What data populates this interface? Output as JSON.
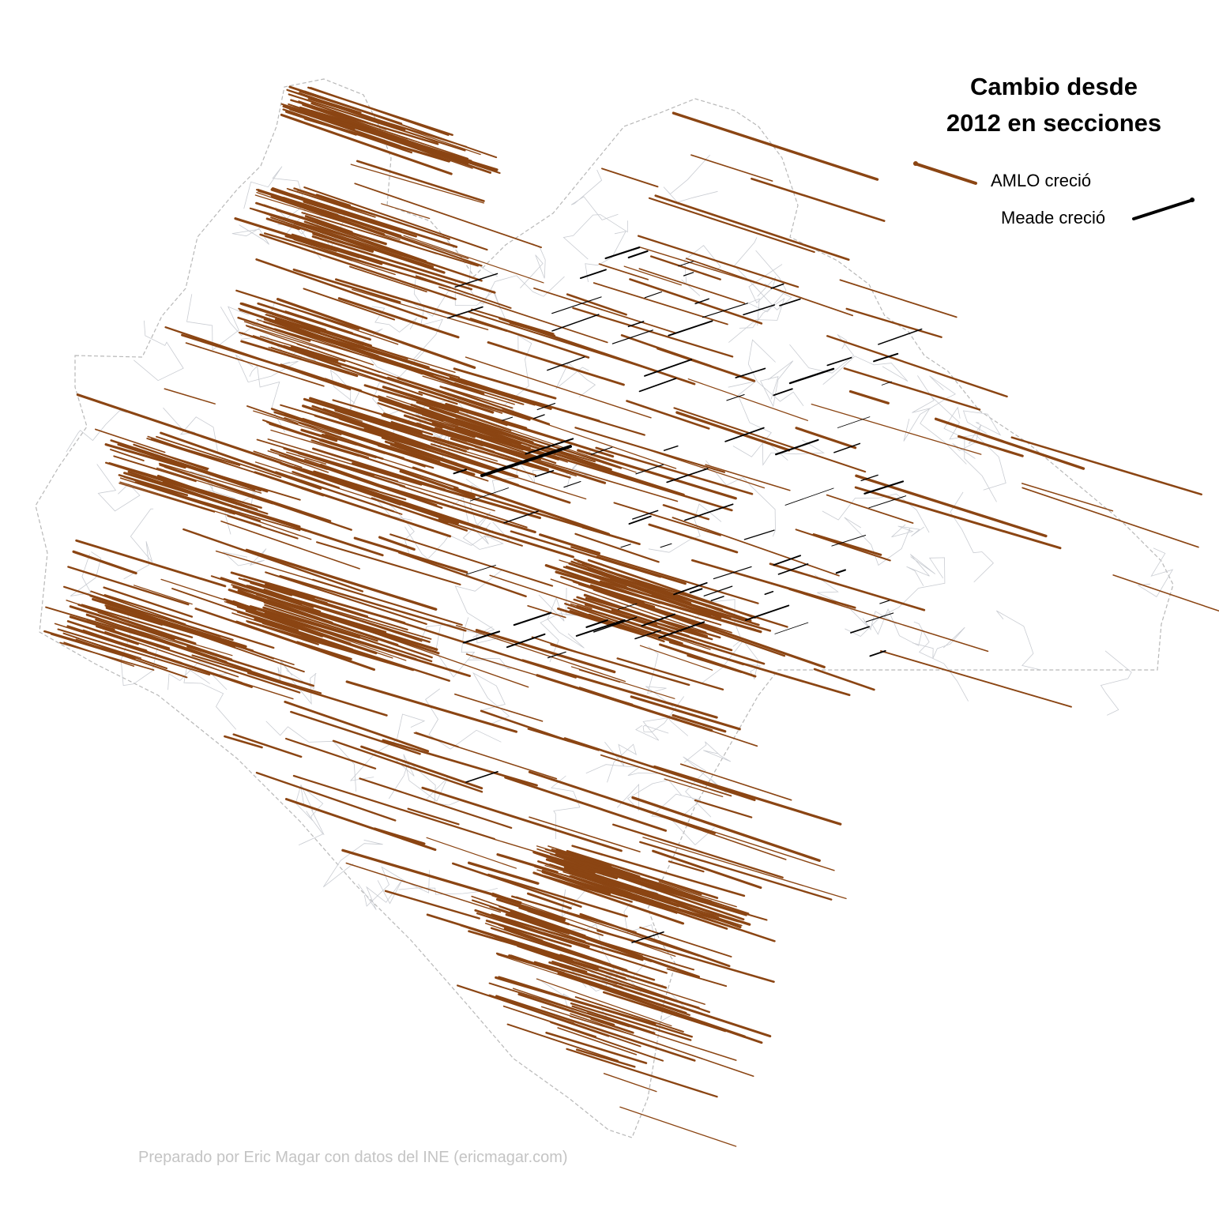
{
  "title": {
    "line1": "Cambio desde",
    "line2": "2012 en secciones"
  },
  "legend": {
    "amlo_label": "AMLO creció",
    "meade_label": "Meade creció",
    "amlo_color": "#8B4513",
    "meade_color": "#000000"
  },
  "credit": "Preparado por Eric Magar con datos del INE (ericmagar.com)",
  "colors": {
    "boundary": "#c9ccd2",
    "state_border": "#b8b8b8",
    "background": "#ffffff"
  }
}
